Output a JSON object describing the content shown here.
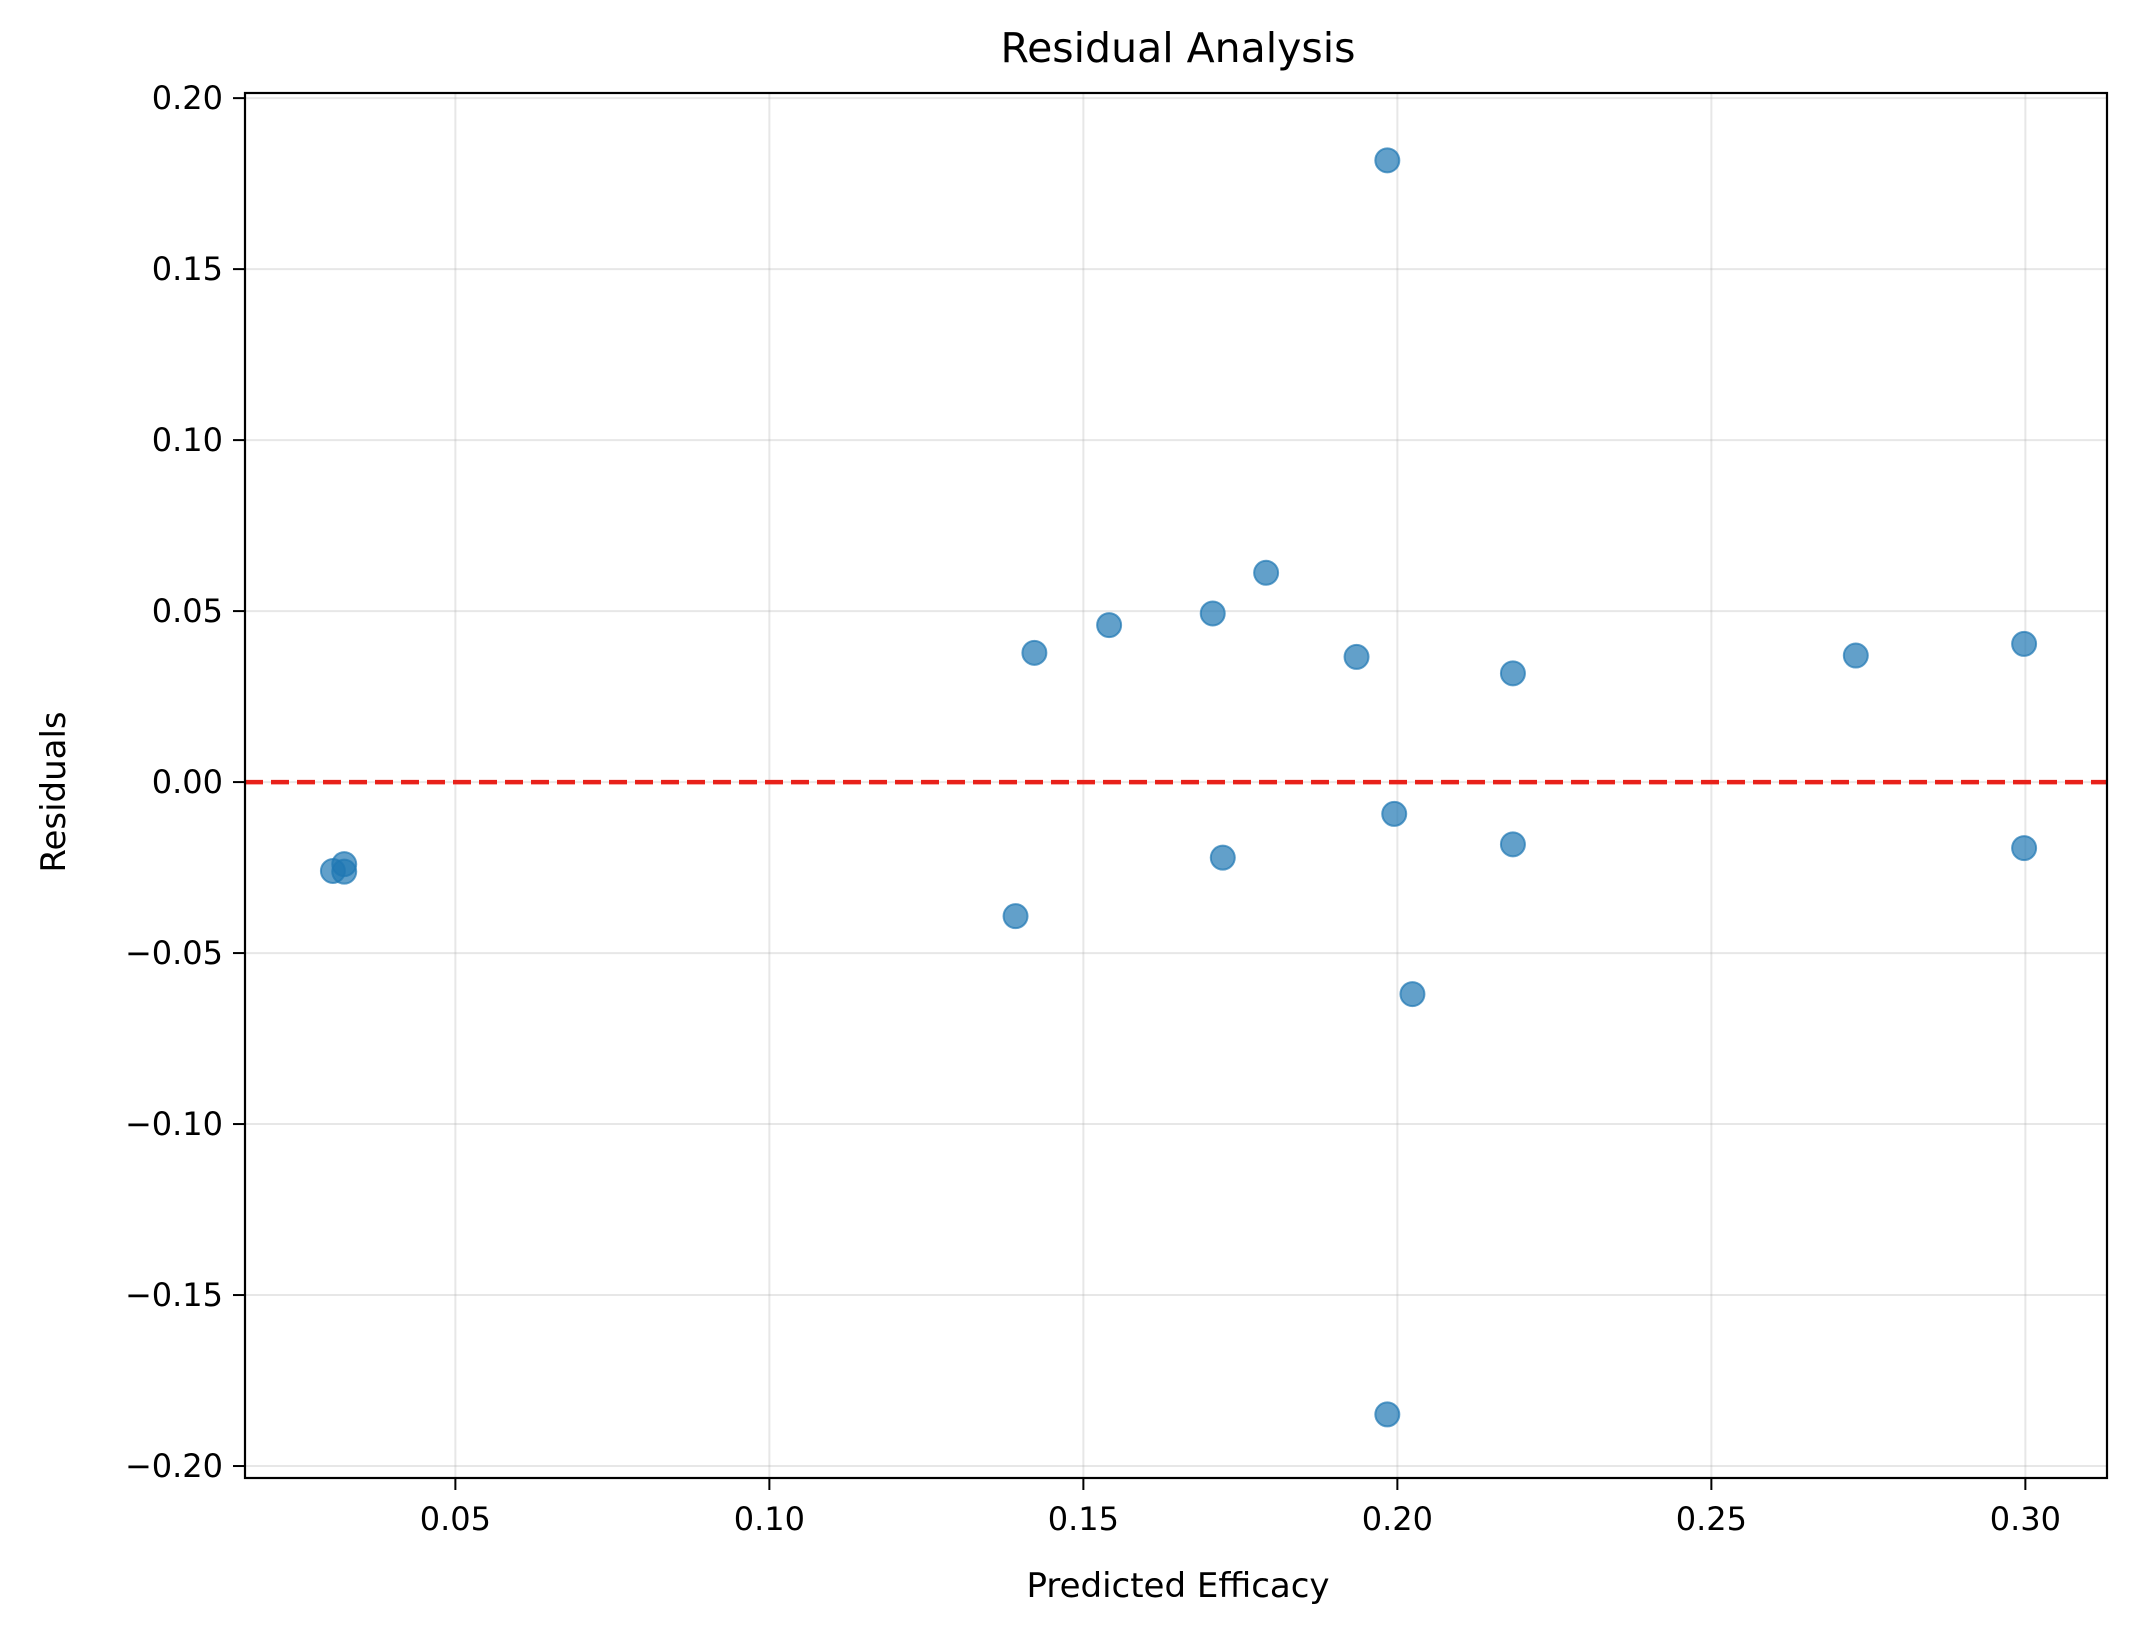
{
  "chart_data": {
    "type": "scatter",
    "title": "Residual Analysis",
    "xlabel": "Predicted Efficacy",
    "ylabel": "Residuals",
    "xlim": [
      0.0165,
      0.313
    ],
    "ylim": [
      -0.2035,
      0.2015
    ],
    "xticks": [
      0.05,
      0.1,
      0.15,
      0.2,
      0.25,
      0.3
    ],
    "xtick_labels": [
      "0.05",
      "0.10",
      "0.15",
      "0.20",
      "0.25",
      "0.30"
    ],
    "yticks": [
      -0.2,
      -0.15,
      -0.1,
      -0.05,
      0.0,
      0.05,
      0.1,
      0.15,
      0.2
    ],
    "ytick_labels": [
      "−0.20",
      "−0.15",
      "−0.10",
      "−0.05",
      "0.00",
      "0.05",
      "0.10",
      "0.15",
      "0.20"
    ],
    "grid": true,
    "reference_line": {
      "y": 0.0,
      "style": "dashed",
      "color": "#e8211a"
    },
    "marker_color": "#1f77b4",
    "marker_alpha": 0.7,
    "points": [
      {
        "x": 0.0305,
        "y": -0.026
      },
      {
        "x": 0.0323,
        "y": -0.024
      },
      {
        "x": 0.0323,
        "y": -0.0262
      },
      {
        "x": 0.1392,
        "y": -0.0392
      },
      {
        "x": 0.1422,
        "y": 0.0378
      },
      {
        "x": 0.1541,
        "y": 0.0459
      },
      {
        "x": 0.1706,
        "y": 0.0493
      },
      {
        "x": 0.1722,
        "y": -0.0221
      },
      {
        "x": 0.1791,
        "y": 0.0612
      },
      {
        "x": 0.1935,
        "y": 0.0366
      },
      {
        "x": 0.1984,
        "y": 0.1818
      },
      {
        "x": 0.1984,
        "y": -0.1849
      },
      {
        "x": 0.1995,
        "y": -0.0093
      },
      {
        "x": 0.2024,
        "y": -0.062
      },
      {
        "x": 0.2184,
        "y": 0.0318
      },
      {
        "x": 0.2184,
        "y": -0.0182
      },
      {
        "x": 0.273,
        "y": 0.037
      },
      {
        "x": 0.2998,
        "y": 0.0404
      },
      {
        "x": 0.2998,
        "y": -0.0193
      }
    ]
  }
}
